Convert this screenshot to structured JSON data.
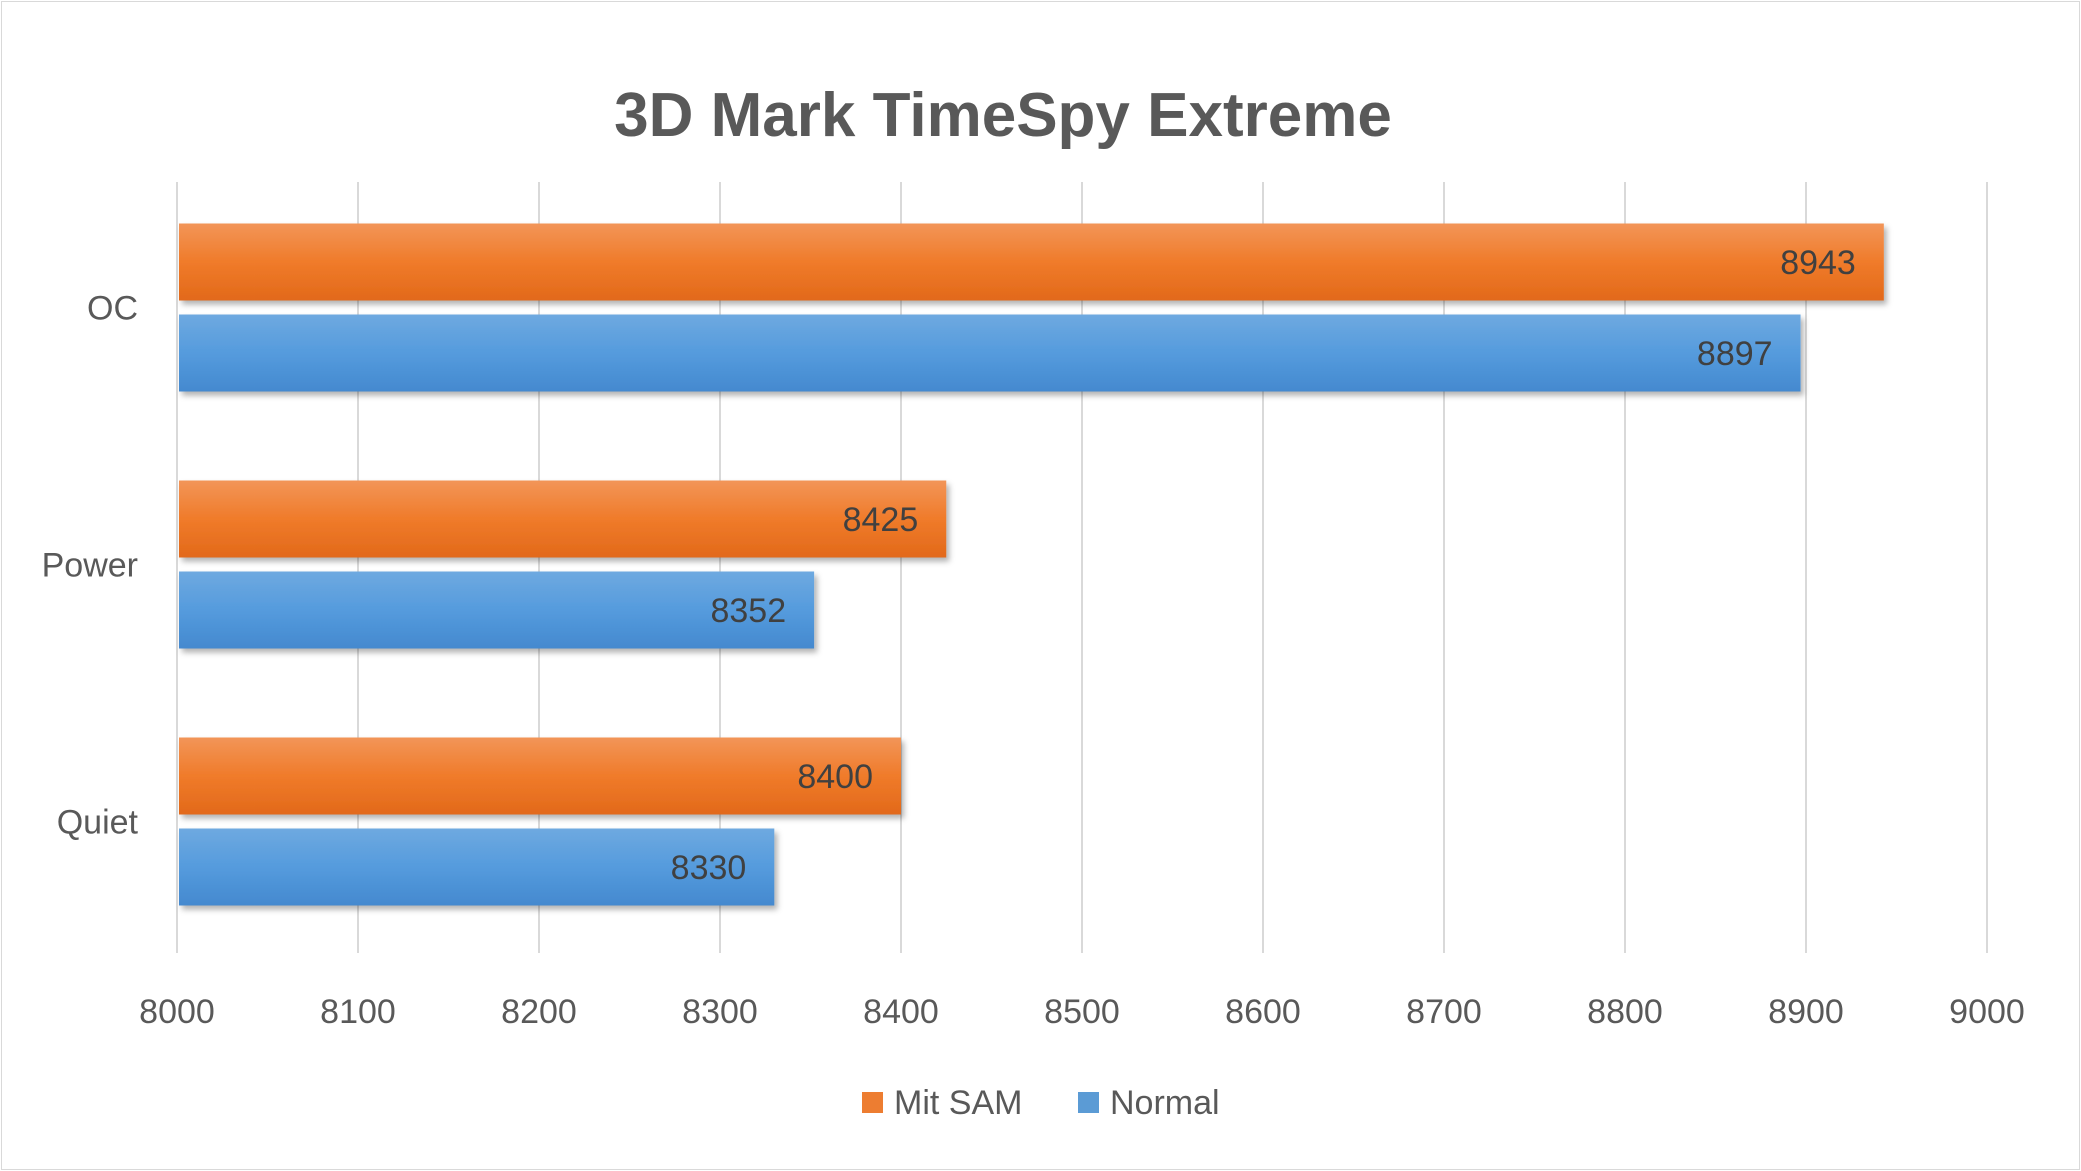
{
  "chart_data": {
    "type": "bar",
    "orientation": "horizontal",
    "title": "3D Mark TimeSpy Extreme",
    "categories": [
      "OC",
      "Power",
      "Quiet"
    ],
    "series": [
      {
        "name": "Mit SAM",
        "color": "#ED7D31",
        "values": [
          8943,
          8425,
          8400
        ]
      },
      {
        "name": "Normal",
        "color": "#5B9BD5",
        "values": [
          8897,
          8352,
          8330
        ]
      }
    ],
    "xlim": [
      8000,
      9000
    ],
    "xticks": [
      "8000",
      "8100",
      "8200",
      "8300",
      "8400",
      "8500",
      "8600",
      "8700",
      "8800",
      "8900",
      "9000"
    ],
    "grid": true,
    "legend": "bottom",
    "data_labels": true
  }
}
